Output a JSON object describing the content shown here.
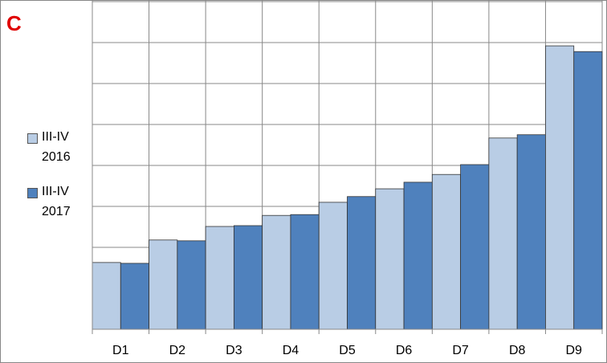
{
  "chart_data": {
    "type": "bar",
    "panel_label": "C",
    "categories": [
      "D1",
      "D2",
      "D3",
      "D4",
      "D5",
      "D6",
      "D7",
      "D8",
      "D9"
    ],
    "series": [
      {
        "name": "III-IV 2016",
        "color": "#b9cde5",
        "values": [
          1.63,
          2.18,
          2.51,
          2.78,
          3.1,
          3.43,
          3.78,
          4.67,
          6.92
        ]
      },
      {
        "name": "III-IV 2017",
        "color": "#4f81bd",
        "values": [
          1.61,
          2.16,
          2.53,
          2.8,
          3.24,
          3.59,
          4.02,
          4.75,
          6.78
        ]
      }
    ],
    "ylim": [
      0,
      8
    ],
    "grid_lines": [
      1,
      2,
      3,
      4,
      5,
      6,
      7,
      8
    ],
    "grid": true,
    "legend": "left"
  }
}
